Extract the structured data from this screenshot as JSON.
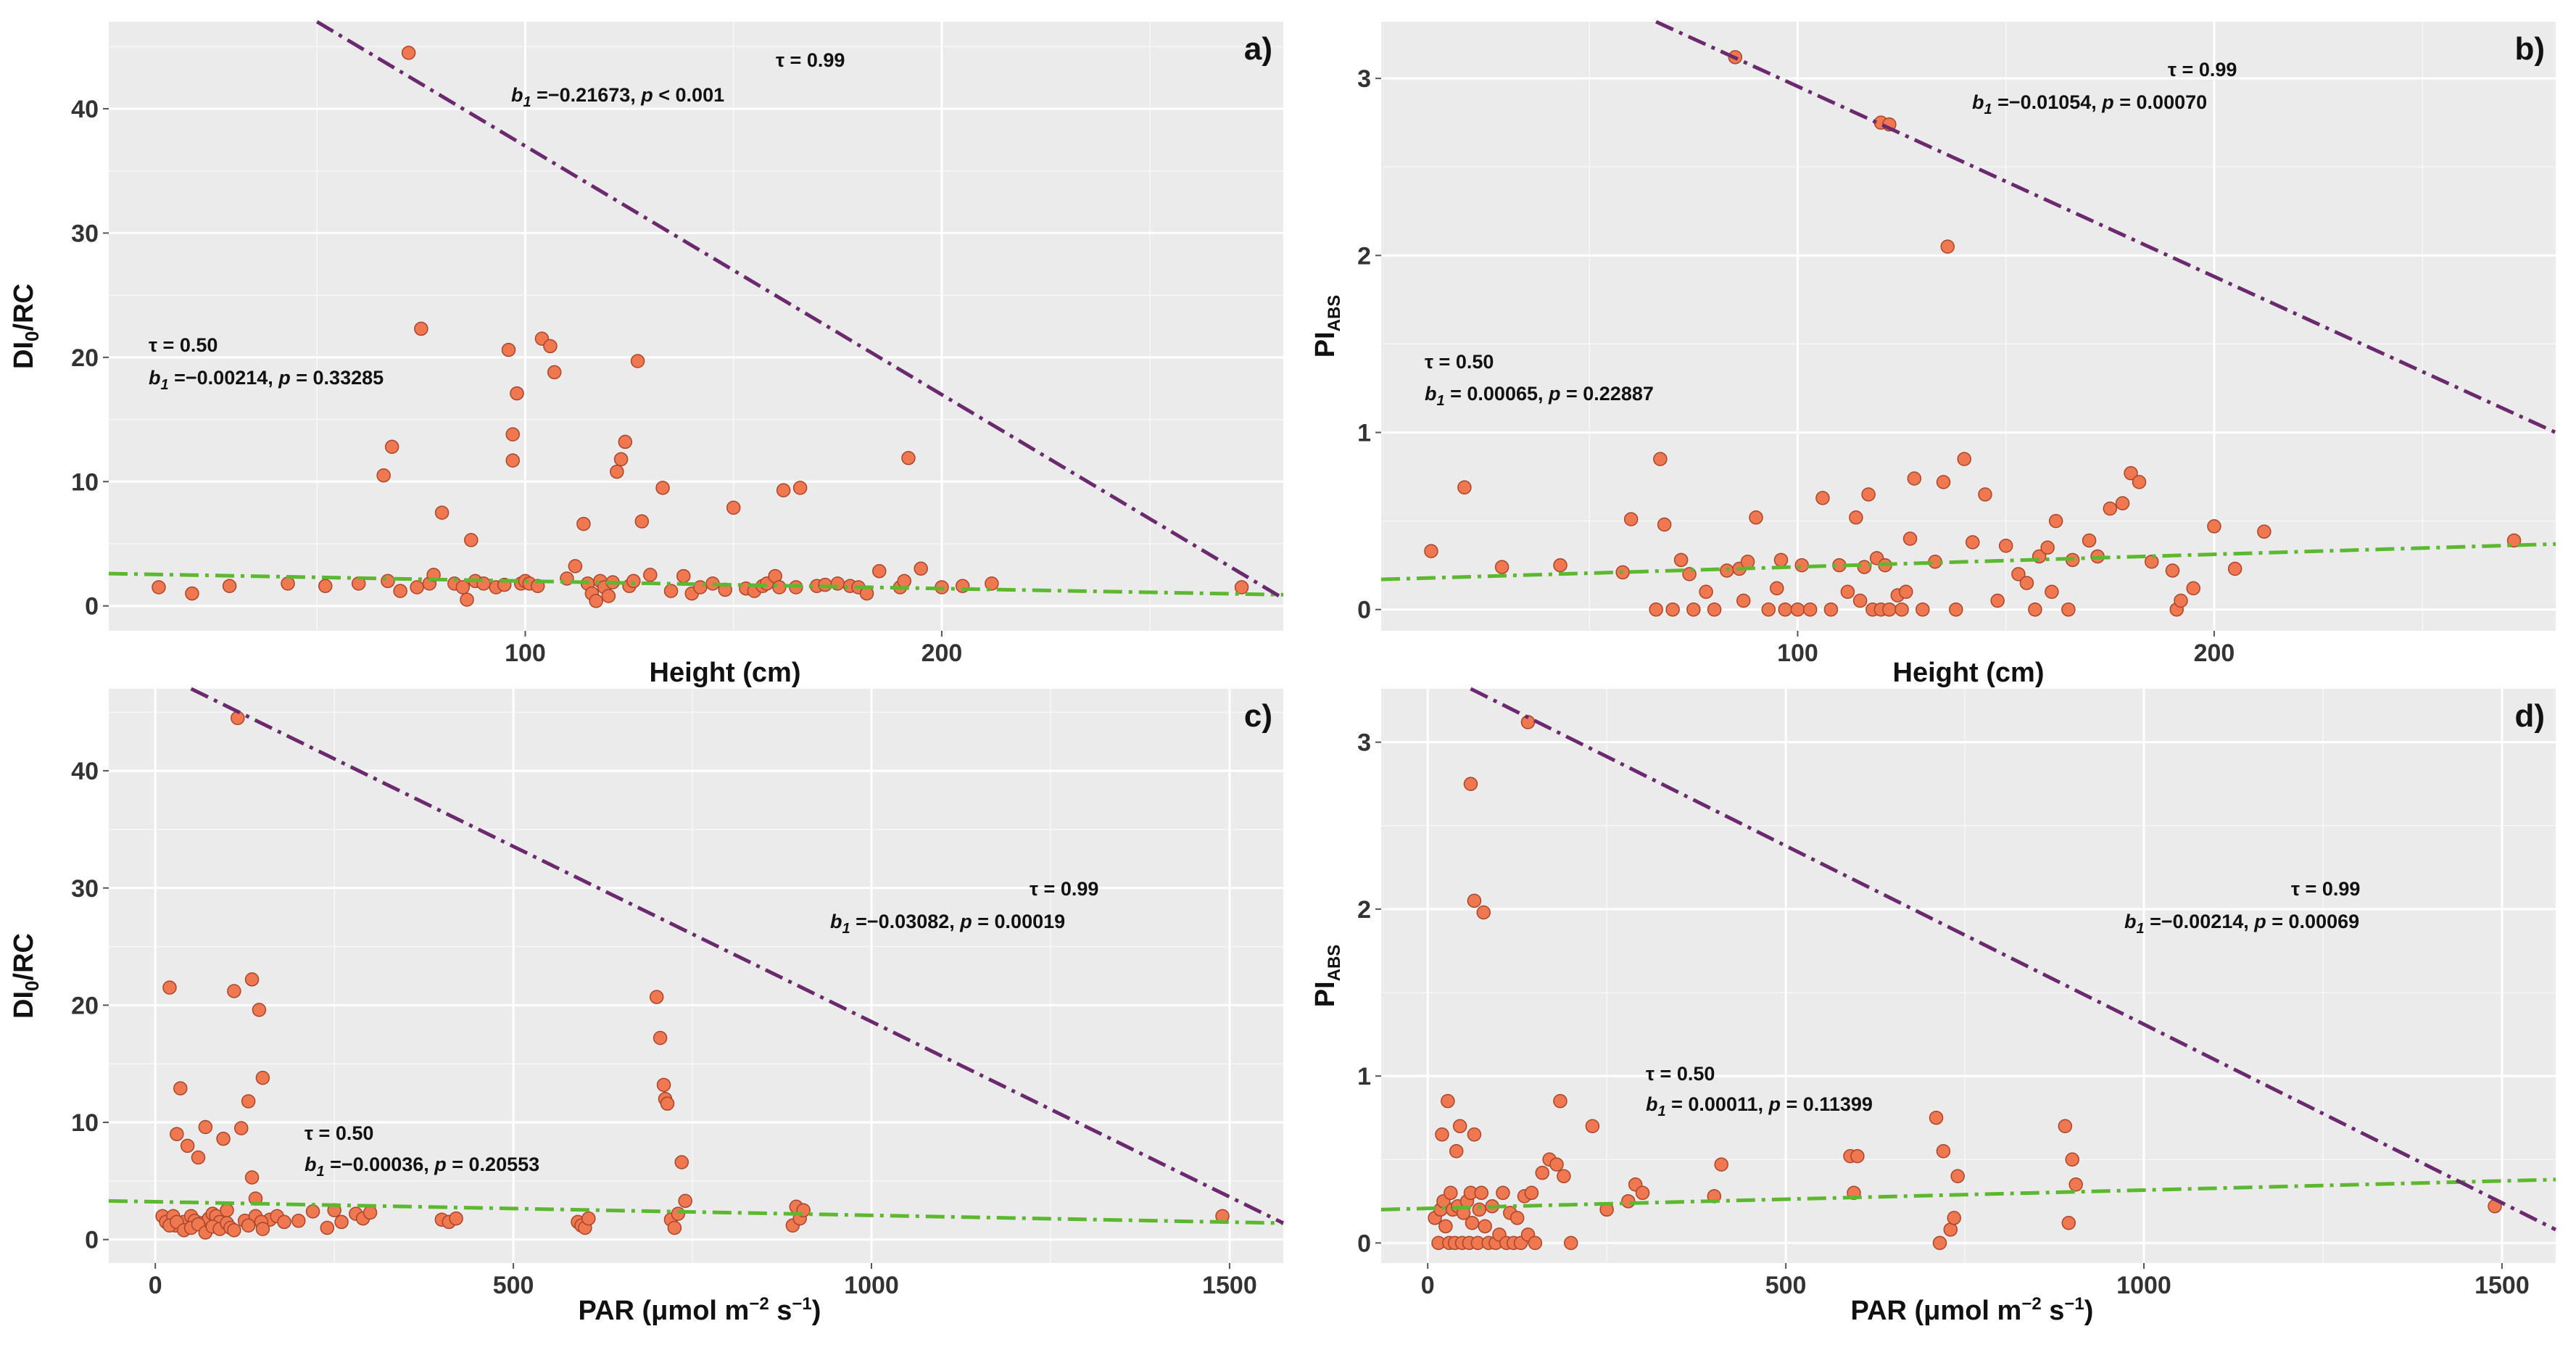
{
  "chart_data": [
    {
      "type": "scatter",
      "panel_label": "a)",
      "xlabel": "Height (cm)",
      "ylabel_main": "DI",
      "ylabel_sub": "0",
      "ylabel_rest": "/RC",
      "xlim": [
        0,
        282
      ],
      "ylim": [
        -2,
        47
      ],
      "xticks": [
        100,
        200
      ],
      "xtick_labels": [
        "100",
        "200"
      ],
      "yticks": [
        0,
        10,
        20,
        30,
        40
      ],
      "ytick_labels": [
        "0",
        "10",
        "20",
        "30",
        "40"
      ],
      "q99": {
        "x": [
          50,
          282
        ],
        "y": [
          47,
          0.6
        ]
      },
      "q50": {
        "x": [
          0,
          282
        ],
        "y": [
          2.6,
          0.9
        ]
      },
      "ann99": {
        "tau": "τ = 0.99",
        "b": "b",
        "b_sub": "1",
        "rest": " =−0.21673, ",
        "p": "p",
        "p_rest": " < 0.001"
      },
      "ann50": {
        "tau": "τ = 0.50",
        "b": "b",
        "b_sub": "1",
        "rest": " =−0.00214, ",
        "p": "p",
        "p_rest": " = 0.33285"
      },
      "points": {
        "x": [
          12,
          20,
          29,
          43,
          52,
          60,
          66,
          67,
          68,
          70,
          72,
          74,
          75,
          77,
          78,
          80,
          83,
          85,
          86,
          87,
          88,
          90,
          93,
          95,
          96,
          97,
          97,
          98,
          99,
          100,
          101,
          103,
          104,
          106,
          107,
          110,
          112,
          114,
          115,
          116,
          117,
          118,
          119,
          120,
          121,
          122,
          123,
          124,
          125,
          126,
          127,
          128,
          130,
          133,
          135,
          138,
          140,
          142,
          145,
          148,
          150,
          153,
          155,
          157,
          158,
          160,
          161,
          162,
          165,
          166,
          170,
          172,
          175,
          178,
          180,
          182,
          185,
          190,
          191,
          192,
          195,
          200,
          205,
          212,
          272
        ],
        "y": [
          1.5,
          1.0,
          1.6,
          1.8,
          1.6,
          1.8,
          10.5,
          2.0,
          12.8,
          1.2,
          44.5,
          1.5,
          22.3,
          1.8,
          2.5,
          7.5,
          1.8,
          1.5,
          0.5,
          5.3,
          2.0,
          1.8,
          1.5,
          1.7,
          20.6,
          11.7,
          13.8,
          17.1,
          1.8,
          2.0,
          1.8,
          1.6,
          21.5,
          20.9,
          18.8,
          2.2,
          3.2,
          6.6,
          1.8,
          1.0,
          0.4,
          2.0,
          1.5,
          0.8,
          1.9,
          10.8,
          11.8,
          13.2,
          1.6,
          2.0,
          19.7,
          6.8,
          2.5,
          9.5,
          1.2,
          2.4,
          1.0,
          1.5,
          1.8,
          1.3,
          7.9,
          1.4,
          1.2,
          1.6,
          1.8,
          2.4,
          1.5,
          9.3,
          1.5,
          9.5,
          1.6,
          1.7,
          1.8,
          1.6,
          1.5,
          1.0,
          2.8,
          1.5,
          2.0,
          11.9,
          3.0,
          1.5,
          1.6,
          1.8,
          1.5
        ]
      }
    },
    {
      "type": "scatter",
      "panel_label": "b)",
      "xlabel": "Height (cm)",
      "ylabel_main": "PI",
      "ylabel_sub": "ABS",
      "ylabel_rest": "",
      "xlim": [
        0,
        282
      ],
      "ylim": [
        -0.12,
        3.32
      ],
      "xticks": [
        100,
        200
      ],
      "xtick_labels": [
        "100",
        "200"
      ],
      "yticks": [
        0,
        1,
        2,
        3
      ],
      "ytick_labels": [
        "0",
        "1",
        "2",
        "3"
      ],
      "q99": {
        "x": [
          66,
          282
        ],
        "y": [
          3.32,
          1.0
        ]
      },
      "q50": {
        "x": [
          0,
          282
        ],
        "y": [
          0.17,
          0.37
        ]
      },
      "ann99": {
        "tau": "τ = 0.99",
        "b": "b",
        "b_sub": "1",
        "rest": " =−0.01054, ",
        "p": "p",
        "p_rest": " = 0.00070"
      },
      "ann50": {
        "tau": "τ = 0.50",
        "b": "b",
        "b_sub": "1",
        "rest": " = 0.00065, ",
        "p": "p",
        "p_rest": " = 0.22887"
      },
      "points": {
        "x": [
          12,
          20,
          29,
          43,
          58,
          60,
          66,
          67,
          68,
          70,
          72,
          74,
          75,
          78,
          80,
          83,
          85,
          86,
          87,
          88,
          90,
          93,
          95,
          96,
          97,
          100,
          101,
          103,
          106,
          108,
          110,
          112,
          114,
          115,
          116,
          117,
          118,
          119,
          120,
          121,
          122,
          124,
          125,
          126,
          127,
          128,
          130,
          133,
          135,
          138,
          140,
          142,
          145,
          148,
          150,
          153,
          155,
          157,
          158,
          160,
          161,
          162,
          165,
          166,
          170,
          172,
          175,
          178,
          180,
          182,
          185,
          190,
          191,
          192,
          195,
          200,
          205,
          212,
          272,
          120,
          122,
          136
        ],
        "y": [
          0.33,
          0.69,
          0.24,
          0.25,
          0.21,
          0.51,
          0.0,
          0.85,
          0.48,
          0.0,
          0.28,
          0.2,
          0.0,
          0.1,
          0.0,
          0.22,
          3.12,
          0.23,
          0.05,
          0.27,
          0.52,
          0.0,
          0.12,
          0.28,
          0.0,
          0.0,
          0.25,
          0.0,
          0.63,
          0.0,
          0.25,
          0.1,
          0.52,
          0.05,
          0.24,
          0.65,
          0.0,
          0.29,
          0.0,
          0.25,
          0.0,
          0.08,
          0.0,
          0.1,
          0.4,
          0.74,
          0.0,
          0.27,
          0.72,
          0.0,
          0.85,
          0.38,
          0.65,
          0.05,
          0.36,
          0.2,
          0.15,
          0.0,
          0.3,
          0.35,
          0.1,
          0.5,
          0.0,
          0.28,
          0.39,
          0.3,
          0.57,
          0.6,
          0.77,
          0.72,
          0.27,
          0.22,
          0.0,
          0.05,
          0.12,
          0.47,
          0.23,
          0.44,
          0.39,
          2.75,
          2.74,
          2.05
        ]
      }
    },
    {
      "type": "scatter",
      "panel_label": "c)",
      "xlabel_main": "PAR (μmol m",
      "xlabel_sup1": "−2",
      "xlabel_mid": " s",
      "xlabel_sup2": "−1",
      "xlabel_end": ")",
      "ylabel_main": "DI",
      "ylabel_sub": "0",
      "ylabel_rest": "/RC",
      "xlim": [
        -65,
        1575
      ],
      "ylim": [
        -2,
        47
      ],
      "xticks": [
        0,
        500,
        1000,
        1500
      ],
      "xtick_labels": [
        "0",
        "500",
        "1000",
        "1500"
      ],
      "yticks": [
        0,
        10,
        20,
        30,
        40
      ],
      "ytick_labels": [
        "0",
        "10",
        "20",
        "30",
        "40"
      ],
      "q99": {
        "x": [
          50,
          1575
        ],
        "y": [
          47,
          1.4
        ]
      },
      "q50": {
        "x": [
          -65,
          1575
        ],
        "y": [
          3.3,
          1.4
        ]
      },
      "ann99": {
        "tau": "τ = 0.99",
        "b": "b",
        "b_sub": "1",
        "rest": " =−0.03082, ",
        "p": "p",
        "p_rest": " = 0.00019"
      },
      "ann50": {
        "tau": "τ = 0.50",
        "b": "b",
        "b_sub": "1",
        "rest": " =−0.00036, ",
        "p": "p",
        "p_rest": " = 0.20553"
      },
      "points": {
        "x": [
          10,
          15,
          20,
          25,
          28,
          30,
          35,
          40,
          45,
          50,
          55,
          60,
          65,
          70,
          75,
          80,
          85,
          90,
          95,
          100,
          110,
          115,
          120,
          125,
          130,
          135,
          140,
          145,
          150,
          160,
          170,
          180,
          200,
          220,
          240,
          250,
          260,
          280,
          290,
          300,
          400,
          410,
          420,
          590,
          595,
          600,
          605,
          700,
          705,
          710,
          712,
          715,
          720,
          725,
          730,
          735,
          740,
          890,
          895,
          900,
          905,
          1490,
          20,
          30,
          40,
          50,
          60,
          70,
          80,
          90,
          100,
          105,
          110,
          130,
          135,
          140,
          148,
          150
        ],
        "y": [
          2.0,
          1.5,
          21.5,
          2.0,
          1.2,
          9.0,
          12.9,
          1.5,
          8.0,
          2.0,
          1.6,
          7.0,
          1.4,
          9.6,
          1.8,
          2.2,
          2.0,
          1.5,
          8.6,
          2.5,
          21.2,
          44.5,
          9.5,
          1.6,
          11.8,
          22.2,
          2.0,
          19.6,
          13.8,
          1.7,
          2.0,
          1.5,
          1.6,
          2.4,
          1.0,
          2.5,
          1.5,
          2.2,
          1.8,
          2.3,
          1.7,
          1.5,
          1.8,
          1.5,
          1.2,
          1.0,
          1.8,
          20.7,
          17.2,
          13.2,
          12.0,
          11.6,
          1.7,
          1.0,
          2.2,
          6.6,
          3.3,
          1.2,
          2.8,
          1.8,
          2.5,
          2.0,
          1.2,
          1.5,
          0.8,
          1.0,
          1.3,
          0.6,
          1.1,
          0.9,
          1.4,
          1.0,
          0.8,
          1.2,
          5.3,
          3.5,
          1.5,
          0.9
        ]
      }
    },
    {
      "type": "scatter",
      "panel_label": "d)",
      "xlabel_main": "PAR (μmol m",
      "xlabel_sup1": "−2",
      "xlabel_mid": " s",
      "xlabel_sup2": "−1",
      "xlabel_end": ")",
      "ylabel_main": "PI",
      "ylabel_sub": "ABS",
      "ylabel_rest": "",
      "xlim": [
        -65,
        1575
      ],
      "ylim": [
        -0.12,
        3.32
      ],
      "xticks": [
        0,
        500,
        1000,
        1500
      ],
      "xtick_labels": [
        "0",
        "500",
        "1000",
        "1500"
      ],
      "yticks": [
        0,
        1,
        2,
        3
      ],
      "ytick_labels": [
        "0",
        "1",
        "2",
        "3"
      ],
      "q99": {
        "x": [
          60,
          1575
        ],
        "y": [
          3.32,
          0.08
        ]
      },
      "q50": {
        "x": [
          -65,
          1575
        ],
        "y": [
          0.2,
          0.38
        ]
      },
      "ann99": {
        "tau": "τ = 0.99",
        "b": "b",
        "b_sub": "1",
        "rest": " =−0.00214, ",
        "p": "p",
        "p_rest": " = 0.00069"
      },
      "ann50": {
        "tau": "τ = 0.50",
        "b": "b",
        "b_sub": "1",
        "rest": " = 0.00011, ",
        "p": "p",
        "p_rest": " = 0.11399"
      },
      "points": {
        "x": [
          10,
          15,
          18,
          20,
          22,
          25,
          28,
          30,
          32,
          35,
          38,
          40,
          42,
          45,
          48,
          50,
          55,
          58,
          60,
          62,
          65,
          70,
          72,
          75,
          80,
          85,
          90,
          95,
          100,
          105,
          110,
          115,
          120,
          125,
          130,
          135,
          140,
          145,
          150,
          160,
          170,
          180,
          185,
          190,
          200,
          230,
          250,
          280,
          290,
          300,
          400,
          410,
          590,
          595,
          600,
          710,
          715,
          720,
          730,
          735,
          740,
          890,
          895,
          900,
          905,
          1490,
          60,
          65,
          78,
          140
        ],
        "y": [
          0.15,
          0.0,
          0.2,
          0.65,
          0.25,
          0.1,
          0.85,
          0.0,
          0.3,
          0.2,
          0.0,
          0.55,
          0.22,
          0.7,
          0.0,
          0.18,
          0.25,
          0.0,
          0.3,
          0.12,
          0.65,
          0.0,
          0.2,
          0.3,
          0.1,
          0.0,
          0.22,
          0.0,
          0.05,
          0.3,
          0.0,
          0.18,
          0.0,
          0.15,
          0.0,
          0.28,
          0.05,
          0.3,
          0.0,
          0.42,
          0.5,
          0.47,
          0.85,
          0.4,
          0.0,
          0.7,
          0.2,
          0.25,
          0.35,
          0.3,
          0.28,
          0.47,
          0.52,
          0.3,
          0.52,
          0.75,
          0.0,
          0.55,
          0.08,
          0.15,
          0.4,
          0.7,
          0.12,
          0.5,
          0.35,
          0.22,
          2.75,
          2.05,
          1.98,
          3.12
        ]
      }
    }
  ]
}
